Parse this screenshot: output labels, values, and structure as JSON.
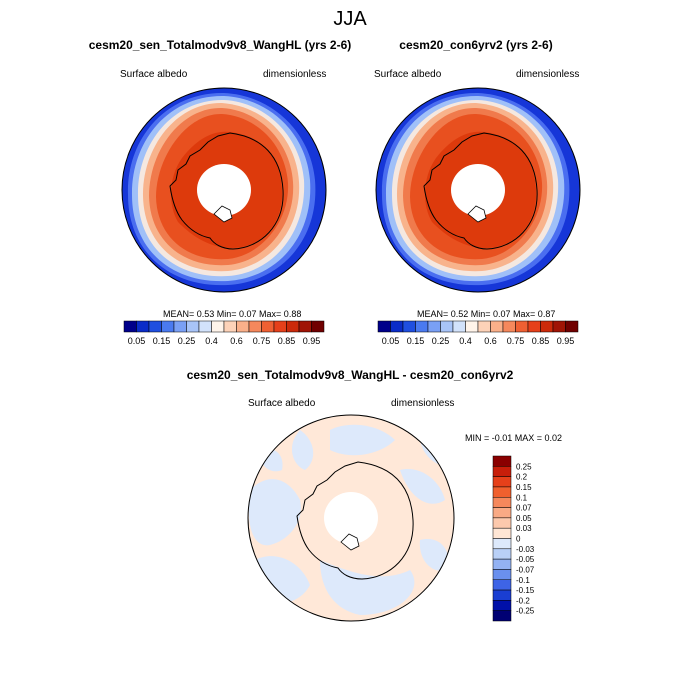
{
  "figure": {
    "season": "JJA"
  },
  "panels": [
    {
      "title": "cesm20_sen_Totalmodv9v8_WangHL (yrs 2-6)",
      "left_label": "Surface albedo",
      "right_label": "dimensionless",
      "stats": {
        "mean": "0.53",
        "min": "0.07",
        "max": "0.88"
      },
      "stats_text": "MEAN=  0.53  Min=  0.07  Max=  0.88"
    },
    {
      "title": "cesm20_con6yrv2 (yrs 2-6)",
      "left_label": "Surface albedo",
      "right_label": "dimensionless",
      "stats": {
        "mean": "0.52",
        "min": "0.07",
        "max": "0.87"
      },
      "stats_text": "MEAN=  0.52  Min=  0.07  Max=  0.87"
    },
    {
      "title": "cesm20_sen_Totalmodv9v8_WangHL - cesm20_con6yrv2",
      "left_label": "Surface albedo",
      "right_label": "dimensionless",
      "stats": {
        "min": "-0.01",
        "max": "0.02"
      },
      "stats_text": "MIN =  -0.01 MAX =   0.02"
    }
  ],
  "colorbar_main": {
    "tick_labels": [
      "0.05",
      "0.15",
      "0.25",
      "0.4",
      "0.6",
      "0.75",
      "0.85",
      "0.95"
    ],
    "colors": [
      "#00008a",
      "#0a2cc8",
      "#1f4fe0",
      "#4a7af0",
      "#7aa0f5",
      "#a8c4f8",
      "#d2e2fb",
      "#fff4ea",
      "#fdd2b8",
      "#fab08a",
      "#f5885c",
      "#ef6033",
      "#e6401a",
      "#cc2a0a",
      "#a01405",
      "#700000"
    ]
  },
  "colorbar_diff": {
    "tick_labels": [
      "0.25",
      "0.2",
      "0.15",
      "0.1",
      "0.07",
      "0.05",
      "0.03",
      "0",
      "-0.03",
      "-0.05",
      "-0.07",
      "-0.1",
      "-0.15",
      "-0.2",
      "-0.25"
    ],
    "colors": [
      "#8a0000",
      "#c81e0a",
      "#e6401a",
      "#f0602e",
      "#f5885c",
      "#f9aa85",
      "#fcc9ad",
      "#ffe6d5",
      "#dde9fb",
      "#b9d0f7",
      "#93b2f3",
      "#6a90ee",
      "#3e64e6",
      "#1a3ed2",
      "#0010a8",
      "#000073"
    ]
  }
}
